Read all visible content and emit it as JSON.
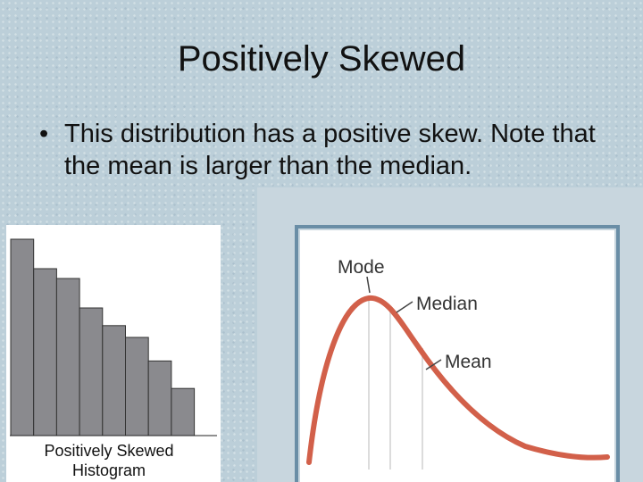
{
  "slide": {
    "title": "Positively Skewed",
    "bullet_symbol": "•",
    "bullet_text": "This distribution has a positive skew. Note that the mean is larger than the median."
  },
  "histogram": {
    "caption_line1": "Positively Skewed",
    "caption_line2": "Histogram",
    "bar_heights_relative": [
      1.0,
      0.85,
      0.8,
      0.65,
      0.56,
      0.5,
      0.38,
      0.24
    ],
    "bar_color": "#8a8a8e"
  },
  "curve_figure": {
    "labels": {
      "mode": "Mode",
      "median": "Median",
      "mean": "Mean"
    },
    "curve_color": "#d2604a",
    "frame_color": "#6a8ea6"
  }
}
